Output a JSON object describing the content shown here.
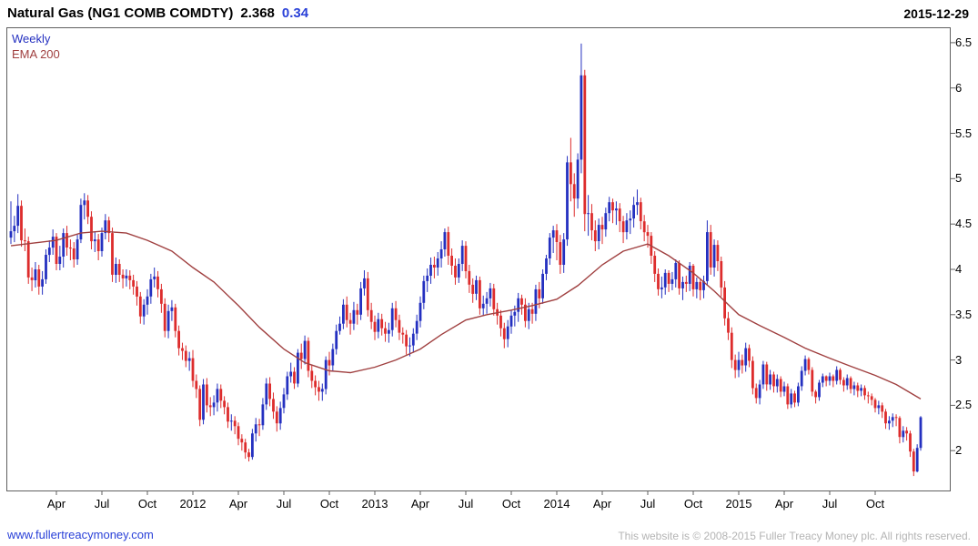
{
  "header": {
    "title": "Natural Gas (NG1 COMB COMDTY)",
    "price": "2.368",
    "change": "0.34",
    "date": "2015-12-29"
  },
  "legend": {
    "weekly": "Weekly",
    "ema": "EMA 200"
  },
  "footer": {
    "link": "www.fullertreacymoney.com",
    "copyright": "This website is © 2008-2015 Fuller Treacy Money plc. All rights reserved."
  },
  "colors": {
    "up": "#2430c0",
    "down": "#dd2c2c",
    "ema": "#a04040",
    "axis": "#606060",
    "accent_blue": "#2a41d8",
    "muted": "#b4b4b4"
  },
  "chart_data": {
    "type": "candlestick",
    "timeframe": "Weekly",
    "overlay": "EMA 200",
    "title": "Natural Gas (NG1 COMB COMDTY)",
    "last_close": 2.368,
    "change": 0.34,
    "ylim": [
      1.55,
      6.67
    ],
    "y_ticks": [
      2,
      2.5,
      3,
      3.5,
      4,
      4.5,
      5,
      5.5,
      6,
      6.5
    ],
    "x_ticks": [
      {
        "label": "Apr",
        "week": 13
      },
      {
        "label": "Jul",
        "week": 26
      },
      {
        "label": "Oct",
        "week": 39
      },
      {
        "label": "2012",
        "week": 52
      },
      {
        "label": "Apr",
        "week": 65
      },
      {
        "label": "Jul",
        "week": 78
      },
      {
        "label": "Oct",
        "week": 91
      },
      {
        "label": "2013",
        "week": 104
      },
      {
        "label": "Apr",
        "week": 117
      },
      {
        "label": "Jul",
        "week": 130
      },
      {
        "label": "Oct",
        "week": 143
      },
      {
        "label": "2014",
        "week": 156
      },
      {
        "label": "Apr",
        "week": 169
      },
      {
        "label": "Jul",
        "week": 182
      },
      {
        "label": "Oct",
        "week": 195
      },
      {
        "label": "2015",
        "week": 208
      },
      {
        "label": "Apr",
        "week": 221
      },
      {
        "label": "Jul",
        "week": 234
      },
      {
        "label": "Oct",
        "week": 247
      }
    ],
    "first_open": 4.35,
    "weeks_hlc": [
      [
        4.75,
        4.28,
        4.42
      ],
      [
        4.59,
        4.3,
        4.48
      ],
      [
        4.83,
        4.4,
        4.7
      ],
      [
        4.76,
        4.25,
        4.32
      ],
      [
        4.45,
        4.2,
        4.31
      ],
      [
        4.36,
        3.84,
        3.91
      ],
      [
        4.02,
        3.76,
        3.88
      ],
      [
        4.08,
        3.8,
        4.0
      ],
      [
        4.05,
        3.72,
        3.81
      ],
      [
        3.98,
        3.72,
        3.89
      ],
      [
        4.22,
        3.84,
        4.16
      ],
      [
        4.32,
        4.08,
        4.24
      ],
      [
        4.44,
        4.16,
        4.36
      ],
      [
        4.4,
        3.99,
        4.06
      ],
      [
        4.26,
        3.99,
        4.14
      ],
      [
        4.45,
        4.02,
        4.4
      ],
      [
        4.48,
        4.15,
        4.24
      ],
      [
        4.33,
        4.1,
        4.23
      ],
      [
        4.3,
        4.02,
        4.11
      ],
      [
        4.38,
        4.05,
        4.33
      ],
      [
        4.78,
        4.29,
        4.71
      ],
      [
        4.84,
        4.55,
        4.76
      ],
      [
        4.82,
        4.5,
        4.58
      ],
      [
        4.64,
        4.22,
        4.31
      ],
      [
        4.42,
        4.19,
        4.33
      ],
      [
        4.39,
        4.1,
        4.2
      ],
      [
        4.46,
        4.14,
        4.4
      ],
      [
        4.61,
        4.33,
        4.54
      ],
      [
        4.58,
        4.3,
        4.4
      ],
      [
        4.46,
        3.86,
        3.94
      ],
      [
        4.13,
        3.85,
        4.06
      ],
      [
        4.11,
        3.86,
        3.94
      ],
      [
        4.0,
        3.79,
        3.9
      ],
      [
        4.0,
        3.81,
        3.93
      ],
      [
        3.99,
        3.78,
        3.88
      ],
      [
        3.94,
        3.72,
        3.81
      ],
      [
        3.87,
        3.6,
        3.7
      ],
      [
        3.75,
        3.4,
        3.48
      ],
      [
        3.67,
        3.39,
        3.61
      ],
      [
        3.78,
        3.5,
        3.7
      ],
      [
        3.95,
        3.62,
        3.89
      ],
      [
        4.02,
        3.8,
        3.92
      ],
      [
        3.98,
        3.69,
        3.78
      ],
      [
        3.84,
        3.52,
        3.62
      ],
      [
        3.68,
        3.25,
        3.32
      ],
      [
        3.61,
        3.24,
        3.54
      ],
      [
        3.66,
        3.43,
        3.58
      ],
      [
        3.62,
        3.25,
        3.32
      ],
      [
        3.38,
        3.05,
        3.13
      ],
      [
        3.19,
        3.0,
        3.1
      ],
      [
        3.16,
        2.92,
        2.99
      ],
      [
        3.09,
        2.88,
        3.02
      ],
      [
        3.11,
        2.7,
        2.77
      ],
      [
        2.84,
        2.58,
        2.68
      ],
      [
        2.72,
        2.27,
        2.34
      ],
      [
        2.79,
        2.29,
        2.73
      ],
      [
        2.8,
        2.42,
        2.5
      ],
      [
        2.59,
        2.38,
        2.48
      ],
      [
        2.61,
        2.39,
        2.53
      ],
      [
        2.74,
        2.43,
        2.68
      ],
      [
        2.73,
        2.47,
        2.55
      ],
      [
        2.6,
        2.4,
        2.48
      ],
      [
        2.53,
        2.25,
        2.32
      ],
      [
        2.4,
        2.22,
        2.33
      ],
      [
        2.38,
        2.18,
        2.27
      ],
      [
        2.31,
        2.06,
        2.13
      ],
      [
        2.18,
        2.0,
        2.09
      ],
      [
        2.13,
        1.91,
        1.98
      ],
      [
        2.02,
        1.88,
        1.93
      ],
      [
        2.24,
        1.9,
        2.19
      ],
      [
        2.36,
        2.1,
        2.29
      ],
      [
        2.35,
        2.16,
        2.28
      ],
      [
        2.58,
        2.23,
        2.51
      ],
      [
        2.8,
        2.45,
        2.74
      ],
      [
        2.81,
        2.49,
        2.57
      ],
      [
        2.64,
        2.35,
        2.43
      ],
      [
        2.49,
        2.21,
        2.3
      ],
      [
        2.54,
        2.23,
        2.47
      ],
      [
        2.69,
        2.41,
        2.62
      ],
      [
        2.87,
        2.56,
        2.82
      ],
      [
        2.97,
        2.75,
        2.87
      ],
      [
        2.92,
        2.68,
        2.74
      ],
      [
        3.12,
        2.7,
        3.08
      ],
      [
        3.18,
        2.9,
        3.01
      ],
      [
        3.27,
        2.95,
        3.21
      ],
      [
        3.25,
        2.81,
        2.88
      ],
      [
        2.95,
        2.69,
        2.77
      ],
      [
        2.83,
        2.61,
        2.7
      ],
      [
        2.77,
        2.55,
        2.65
      ],
      [
        2.74,
        2.55,
        2.68
      ],
      [
        3.04,
        2.62,
        3.0
      ],
      [
        3.09,
        2.83,
        2.94
      ],
      [
        3.18,
        2.87,
        3.12
      ],
      [
        3.39,
        3.06,
        3.32
      ],
      [
        3.48,
        3.28,
        3.4
      ],
      [
        3.67,
        3.34,
        3.61
      ],
      [
        3.7,
        3.36,
        3.44
      ],
      [
        3.52,
        3.28,
        3.4
      ],
      [
        3.64,
        3.33,
        3.55
      ],
      [
        3.62,
        3.39,
        3.5
      ],
      [
        3.86,
        3.44,
        3.79
      ],
      [
        3.99,
        3.71,
        3.9
      ],
      [
        3.97,
        3.48,
        3.55
      ],
      [
        3.63,
        3.34,
        3.42
      ],
      [
        3.49,
        3.22,
        3.31
      ],
      [
        3.52,
        3.24,
        3.45
      ],
      [
        3.51,
        3.27,
        3.35
      ],
      [
        3.42,
        3.2,
        3.29
      ],
      [
        3.41,
        3.19,
        3.33
      ],
      [
        3.63,
        3.26,
        3.57
      ],
      [
        3.65,
        3.36,
        3.44
      ],
      [
        3.5,
        3.22,
        3.3
      ],
      [
        3.36,
        3.18,
        3.28
      ],
      [
        3.33,
        3.06,
        3.15
      ],
      [
        3.25,
        3.04,
        3.16
      ],
      [
        3.35,
        3.08,
        3.29
      ],
      [
        3.5,
        3.22,
        3.43
      ],
      [
        3.7,
        3.36,
        3.63
      ],
      [
        3.93,
        3.56,
        3.87
      ],
      [
        4.01,
        3.75,
        3.93
      ],
      [
        4.13,
        3.84,
        4.05
      ],
      [
        4.14,
        3.9,
        4.02
      ],
      [
        4.19,
        3.93,
        4.12
      ],
      [
        4.31,
        4.02,
        4.22
      ],
      [
        4.45,
        4.14,
        4.41
      ],
      [
        4.47,
        4.05,
        4.15
      ],
      [
        4.23,
        3.94,
        4.04
      ],
      [
        4.12,
        3.83,
        3.91
      ],
      [
        4.12,
        3.85,
        4.06
      ],
      [
        4.32,
        3.98,
        4.26
      ],
      [
        4.31,
        3.9,
        3.98
      ],
      [
        4.05,
        3.74,
        3.83
      ],
      [
        3.9,
        3.63,
        3.73
      ],
      [
        3.93,
        3.66,
        3.88
      ],
      [
        3.92,
        3.5,
        3.57
      ],
      [
        3.71,
        3.49,
        3.62
      ],
      [
        3.75,
        3.51,
        3.68
      ],
      [
        3.85,
        3.59,
        3.79
      ],
      [
        3.84,
        3.49,
        3.56
      ],
      [
        3.63,
        3.39,
        3.49
      ],
      [
        3.55,
        3.26,
        3.35
      ],
      [
        3.41,
        3.13,
        3.23
      ],
      [
        3.44,
        3.14,
        3.37
      ],
      [
        3.55,
        3.29,
        3.49
      ],
      [
        3.6,
        3.37,
        3.53
      ],
      [
        3.74,
        3.42,
        3.68
      ],
      [
        3.72,
        3.5,
        3.61
      ],
      [
        3.68,
        3.36,
        3.43
      ],
      [
        3.63,
        3.34,
        3.56
      ],
      [
        3.63,
        3.4,
        3.51
      ],
      [
        3.83,
        3.43,
        3.78
      ],
      [
        3.86,
        3.57,
        3.68
      ],
      [
        4.0,
        3.62,
        3.95
      ],
      [
        4.16,
        3.88,
        4.12
      ],
      [
        4.4,
        4.05,
        4.35
      ],
      [
        4.48,
        4.18,
        4.43
      ],
      [
        4.5,
        4.1,
        4.3
      ],
      [
        4.38,
        3.95,
        4.05
      ],
      [
        4.4,
        3.96,
        4.33
      ],
      [
        5.25,
        4.26,
        5.18
      ],
      [
        5.45,
        4.75,
        4.94
      ],
      [
        5.06,
        4.58,
        4.78
      ],
      [
        5.28,
        4.67,
        5.21
      ],
      [
        6.49,
        5.06,
        6.14
      ],
      [
        6.2,
        4.42,
        4.61
      ],
      [
        4.82,
        4.37,
        4.62
      ],
      [
        4.72,
        4.32,
        4.43
      ],
      [
        4.54,
        4.2,
        4.31
      ],
      [
        4.56,
        4.22,
        4.49
      ],
      [
        4.58,
        4.28,
        4.44
      ],
      [
        4.68,
        4.36,
        4.62
      ],
      [
        4.8,
        4.53,
        4.74
      ],
      [
        4.78,
        4.51,
        4.65
      ],
      [
        4.75,
        4.49,
        4.67
      ],
      [
        4.73,
        4.41,
        4.53
      ],
      [
        4.59,
        4.29,
        4.41
      ],
      [
        4.62,
        4.33,
        4.54
      ],
      [
        4.65,
        4.39,
        4.56
      ],
      [
        4.8,
        4.46,
        4.71
      ],
      [
        4.88,
        4.6,
        4.74
      ],
      [
        4.79,
        4.44,
        4.53
      ],
      [
        4.6,
        4.31,
        4.41
      ],
      [
        4.49,
        4.24,
        4.37
      ],
      [
        4.41,
        4.06,
        4.15
      ],
      [
        4.2,
        3.86,
        3.95
      ],
      [
        4.01,
        3.71,
        3.78
      ],
      [
        3.92,
        3.68,
        3.8
      ],
      [
        4.0,
        3.72,
        3.96
      ],
      [
        3.99,
        3.75,
        3.84
      ],
      [
        3.97,
        3.77,
        3.89
      ],
      [
        4.11,
        3.8,
        4.07
      ],
      [
        4.1,
        3.72,
        3.79
      ],
      [
        3.92,
        3.66,
        3.86
      ],
      [
        3.93,
        3.75,
        3.84
      ],
      [
        4.08,
        3.76,
        4.04
      ],
      [
        4.06,
        3.7,
        3.78
      ],
      [
        3.91,
        3.68,
        3.86
      ],
      [
        3.9,
        3.66,
        3.77
      ],
      [
        3.93,
        3.68,
        3.87
      ],
      [
        4.54,
        3.82,
        4.41
      ],
      [
        4.49,
        3.94,
        4.02
      ],
      [
        4.33,
        3.92,
        4.27
      ],
      [
        4.32,
        3.98,
        4.09
      ],
      [
        4.14,
        3.7,
        3.8
      ],
      [
        3.87,
        3.38,
        3.46
      ],
      [
        3.53,
        3.22,
        3.3
      ],
      [
        3.36,
        2.91,
        3.0
      ],
      [
        3.06,
        2.8,
        2.89
      ],
      [
        3.09,
        2.81,
        3.0
      ],
      [
        3.06,
        2.85,
        2.94
      ],
      [
        3.19,
        2.87,
        3.13
      ],
      [
        3.17,
        2.92,
        2.99
      ],
      [
        3.04,
        2.62,
        2.69
      ],
      [
        2.74,
        2.52,
        2.58
      ],
      [
        2.78,
        2.51,
        2.73
      ],
      [
        2.99,
        2.68,
        2.95
      ],
      [
        2.98,
        2.66,
        2.73
      ],
      [
        2.89,
        2.67,
        2.84
      ],
      [
        2.87,
        2.64,
        2.71
      ],
      [
        2.84,
        2.64,
        2.79
      ],
      [
        2.82,
        2.59,
        2.65
      ],
      [
        2.76,
        2.6,
        2.71
      ],
      [
        2.74,
        2.46,
        2.51
      ],
      [
        2.68,
        2.47,
        2.63
      ],
      [
        2.66,
        2.48,
        2.53
      ],
      [
        2.75,
        2.49,
        2.71
      ],
      [
        2.93,
        2.66,
        2.88
      ],
      [
        3.05,
        2.83,
        3.01
      ],
      [
        3.03,
        2.84,
        2.89
      ],
      [
        2.92,
        2.6,
        2.65
      ],
      [
        2.67,
        2.52,
        2.59
      ],
      [
        2.78,
        2.55,
        2.75
      ],
      [
        2.85,
        2.7,
        2.82
      ],
      [
        2.83,
        2.71,
        2.77
      ],
      [
        2.86,
        2.72,
        2.82
      ],
      [
        2.84,
        2.7,
        2.77
      ],
      [
        2.93,
        2.73,
        2.89
      ],
      [
        2.91,
        2.73,
        2.78
      ],
      [
        2.81,
        2.65,
        2.72
      ],
      [
        2.84,
        2.67,
        2.8
      ],
      [
        2.82,
        2.63,
        2.68
      ],
      [
        2.76,
        2.61,
        2.72
      ],
      [
        2.75,
        2.59,
        2.66
      ],
      [
        2.73,
        2.6,
        2.69
      ],
      [
        2.72,
        2.56,
        2.61
      ],
      [
        2.65,
        2.52,
        2.6
      ],
      [
        2.63,
        2.5,
        2.56
      ],
      [
        2.58,
        2.42,
        2.47
      ],
      [
        2.55,
        2.4,
        2.5
      ],
      [
        2.53,
        2.36,
        2.43
      ],
      [
        2.46,
        2.24,
        2.3
      ],
      [
        2.38,
        2.23,
        2.33
      ],
      [
        2.41,
        2.26,
        2.37
      ],
      [
        2.4,
        2.27,
        2.36
      ],
      [
        2.38,
        2.08,
        2.15
      ],
      [
        2.27,
        2.09,
        2.22
      ],
      [
        2.26,
        2.11,
        2.19
      ],
      [
        2.22,
        1.93,
        1.99
      ],
      [
        2.02,
        1.72,
        1.77
      ],
      [
        2.07,
        1.76,
        2.03
      ],
      [
        2.38,
        2.0,
        2.368
      ]
    ],
    "ema_points": [
      [
        0,
        4.26
      ],
      [
        13,
        4.32
      ],
      [
        20,
        4.4
      ],
      [
        26,
        4.42
      ],
      [
        33,
        4.4
      ],
      [
        39,
        4.32
      ],
      [
        46,
        4.2
      ],
      [
        52,
        4.02
      ],
      [
        58,
        3.86
      ],
      [
        65,
        3.6
      ],
      [
        71,
        3.36
      ],
      [
        78,
        3.12
      ],
      [
        84,
        2.97
      ],
      [
        91,
        2.88
      ],
      [
        97,
        2.86
      ],
      [
        104,
        2.92
      ],
      [
        110,
        3.0
      ],
      [
        117,
        3.12
      ],
      [
        123,
        3.28
      ],
      [
        130,
        3.44
      ],
      [
        136,
        3.5
      ],
      [
        143,
        3.55
      ],
      [
        149,
        3.6
      ],
      [
        156,
        3.67
      ],
      [
        162,
        3.82
      ],
      [
        169,
        4.05
      ],
      [
        175,
        4.2
      ],
      [
        182,
        4.28
      ],
      [
        188,
        4.15
      ],
      [
        195,
        3.96
      ],
      [
        201,
        3.76
      ],
      [
        208,
        3.5
      ],
      [
        214,
        3.38
      ],
      [
        221,
        3.25
      ],
      [
        227,
        3.13
      ],
      [
        234,
        3.02
      ],
      [
        240,
        2.93
      ],
      [
        247,
        2.83
      ],
      [
        253,
        2.73
      ],
      [
        260,
        2.57
      ]
    ]
  }
}
